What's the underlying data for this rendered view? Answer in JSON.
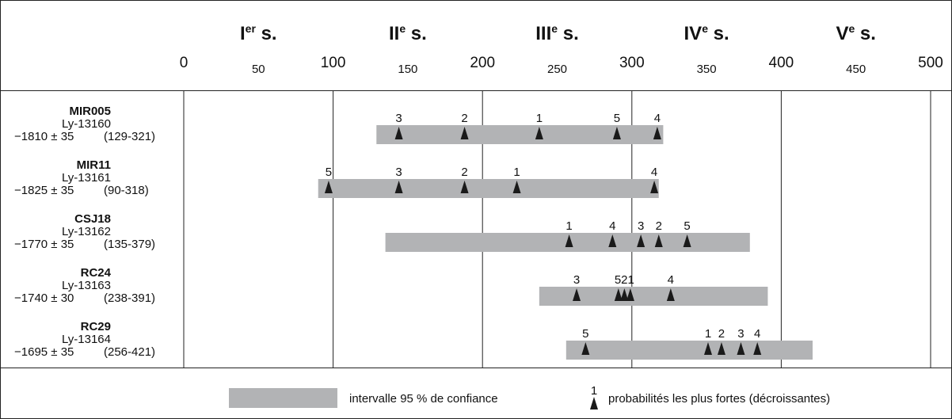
{
  "chart_data": {
    "type": "range",
    "x_axis": {
      "min": 0,
      "max": 500,
      "major_ticks": [
        0,
        100,
        200,
        300,
        400,
        500
      ],
      "major_labels": [
        "0",
        "100",
        "200",
        "300",
        "400",
        "500"
      ],
      "minor_ticks": [
        50,
        150,
        250,
        350,
        450
      ],
      "minor_labels": [
        "50",
        "150",
        "250",
        "350",
        "450"
      ]
    },
    "centuries": [
      {
        "numeral": "I",
        "sup": "er",
        "suffix": " s.",
        "center": 50
      },
      {
        "numeral": "II",
        "sup": "e",
        "suffix": " s.",
        "center": 150
      },
      {
        "numeral": "III",
        "sup": "e",
        "suffix": " s.",
        "center": 250
      },
      {
        "numeral": "IV",
        "sup": "e",
        "suffix": " s.",
        "center": 350
      },
      {
        "numeral": "V",
        "sup": "e",
        "suffix": " s.",
        "center": 450
      }
    ],
    "grid_lines_x": [
      0,
      100,
      200,
      300,
      400,
      500
    ],
    "samples": [
      {
        "name": "MIR005",
        "lab": "Ly-13160",
        "age": "−1810 ± 35",
        "range_label": "(129-321)",
        "start": 129,
        "end": 321,
        "peaks": [
          {
            "rank": "3",
            "x": 144
          },
          {
            "rank": "2",
            "x": 188
          },
          {
            "rank": "1",
            "x": 238
          },
          {
            "rank": "5",
            "x": 290
          },
          {
            "rank": "4",
            "x": 317
          }
        ]
      },
      {
        "name": "MIR11",
        "lab": "Ly-13161",
        "age": "−1825 ± 35",
        "range_label": "(90-318)",
        "start": 90,
        "end": 318,
        "peaks": [
          {
            "rank": "5",
            "x": 97
          },
          {
            "rank": "3",
            "x": 144
          },
          {
            "rank": "2",
            "x": 188
          },
          {
            "rank": "1",
            "x": 223
          },
          {
            "rank": "4",
            "x": 315
          }
        ]
      },
      {
        "name": "CSJ18",
        "lab": "Ly-13162",
        "age": "−1770 ± 35",
        "range_label": "(135-379)",
        "start": 135,
        "end": 379,
        "peaks": [
          {
            "rank": "1",
            "x": 258
          },
          {
            "rank": "4",
            "x": 287
          },
          {
            "rank": "3",
            "x": 306
          },
          {
            "rank": "2",
            "x": 318
          },
          {
            "rank": "5",
            "x": 337
          }
        ]
      },
      {
        "name": "RC24",
        "lab": "Ly-13163",
        "age": "−1740 ± 30",
        "range_label": "(238-391)",
        "start": 238,
        "end": 391,
        "peaks": [
          {
            "rank": "3",
            "x": 263
          },
          {
            "rank": "5",
            "x": 291
          },
          {
            "rank": "2",
            "x": 295
          },
          {
            "rank": "1",
            "x": 299
          },
          {
            "rank": "4",
            "x": 326
          }
        ],
        "cluster_label": "521",
        "cluster_x": 295
      },
      {
        "name": "RC29",
        "lab": "Ly-13164",
        "age": "−1695 ± 35",
        "range_label": "(256-421)",
        "start": 256,
        "end": 421,
        "peaks": [
          {
            "rank": "5",
            "x": 269
          },
          {
            "rank": "1",
            "x": 351
          },
          {
            "rank": "2",
            "x": 360
          },
          {
            "rank": "3",
            "x": 373
          },
          {
            "rank": "4",
            "x": 384
          }
        ]
      }
    ],
    "legend": {
      "bar_label": "intervalle 95 % de confiance",
      "peak_rank_example": "1",
      "peak_label": "probabilités les plus fortes (décroissantes)"
    },
    "colors": {
      "bar": "#b2b3b5",
      "marker": "#1a1a1a",
      "line": "#222222",
      "text": "#111111"
    }
  }
}
